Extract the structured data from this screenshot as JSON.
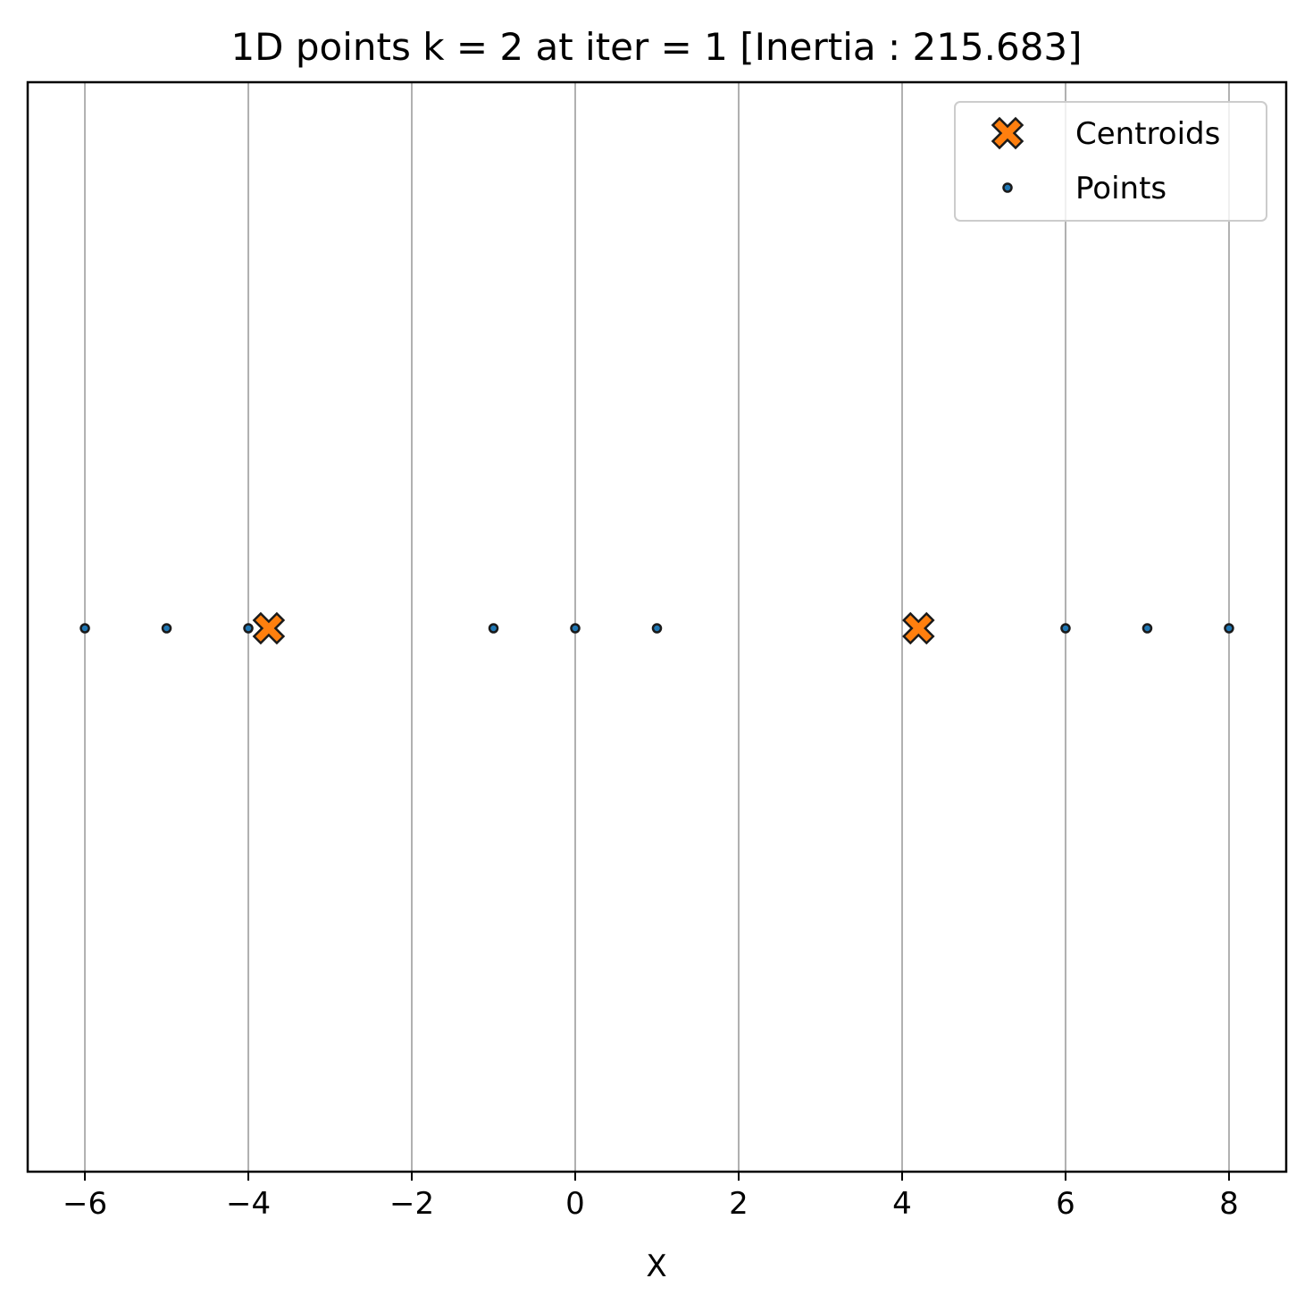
{
  "chart_data": {
    "type": "scatter",
    "title": "1D points k = 2 at iter = 1 [Inertia : 215.683]",
    "xlabel": "X",
    "ylabel": "",
    "xlim": [
      -6.7,
      8.7
    ],
    "xticks": [
      -6,
      -4,
      -2,
      0,
      2,
      4,
      6,
      8
    ],
    "xtick_labels": [
      "−6",
      "−4",
      "−2",
      "0",
      "2",
      "4",
      "6",
      "8"
    ],
    "grid": "x",
    "legend_position": "top-right",
    "series": [
      {
        "name": "Centroids",
        "marker": "X",
        "color": "#ff7f0e",
        "edge_color": "#1a1a1a",
        "x": [
          -3.75,
          4.2
        ],
        "y": [
          0,
          0
        ]
      },
      {
        "name": "Points",
        "marker": "o",
        "color": "#1f77b4",
        "edge_color": "#1a1a1a",
        "x": [
          -6,
          -5,
          -4,
          -1,
          0,
          1,
          6,
          7,
          8
        ],
        "y": [
          0,
          0,
          0,
          0,
          0,
          0,
          0,
          0,
          0
        ]
      }
    ]
  }
}
